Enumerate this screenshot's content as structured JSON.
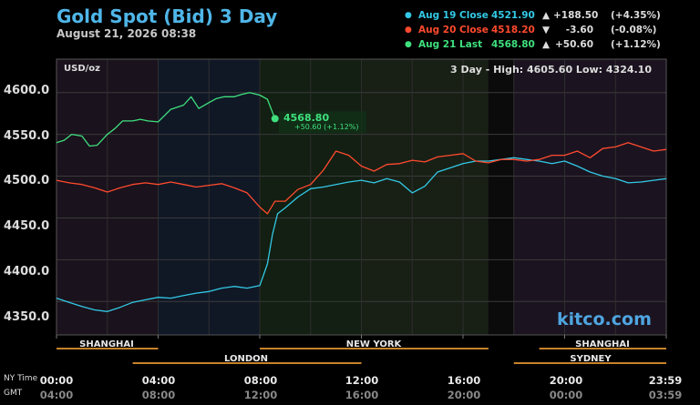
{
  "title": "Gold Spot (Bid) 3 Day",
  "subtitle": "August 21, 2026 08:38",
  "legend": [
    {
      "label": "Aug 19 Close",
      "value": "4521.90",
      "arrow": "▲",
      "change": "+188.50",
      "pct": "(+4.35%)",
      "color": "#33c9e6"
    },
    {
      "label": "Aug 20 Close",
      "value": "4518.20",
      "arrow": "▼",
      "change": "-3.60",
      "pct": "(-0.08%)",
      "color": "#ff4a2e"
    },
    {
      "label": "Aug 21 Last",
      "value": "4568.80",
      "arrow": "▲",
      "change": "+50.60",
      "pct": "(+1.12%)",
      "color": "#3fe07e"
    }
  ],
  "unit": "USD/oz",
  "range_text": "3 Day - High: 4605.60  Low: 4324.10",
  "last_label": "4568.80",
  "last_sub": "+50.60 (+1.12%)",
  "watermark": "kitco.com",
  "tz_ny": "NY Time",
  "tz_gmt": "GMT",
  "sessions_top": [
    "SHANGHAI",
    "NEW YORK",
    "SHANGHAI"
  ],
  "sessions_bottom": [
    "LONDON",
    "SYDNEY"
  ],
  "chart_data": {
    "type": "line",
    "title": "Gold Spot (Bid) 3 Day",
    "ylabel": "USD/oz",
    "ylim": [
      4310,
      4640
    ],
    "y_ticks": [
      "4350.0",
      "4400.0",
      "4450.0",
      "4500.0",
      "4550.0",
      "4600.0"
    ],
    "y_tick_values": [
      4350,
      4400,
      4450,
      4500,
      4550,
      4600
    ],
    "x_ticks_ny": [
      "00:00",
      "04:00",
      "08:00",
      "12:00",
      "16:00",
      "20:00",
      "23:59"
    ],
    "x_ticks_gmt": [
      "04:00",
      "08:00",
      "12:00",
      "16:00",
      "20:00",
      "00:00",
      "03:59"
    ],
    "xlim_hours": [
      0,
      24
    ],
    "series": [
      {
        "name": "Aug 19 Close",
        "color": "#33c9e6",
        "x": [
          0,
          0.5,
          1,
          1.5,
          2,
          2.5,
          3,
          3.5,
          4,
          4.5,
          5,
          5.5,
          6,
          6.5,
          7,
          7.5,
          8,
          8.3,
          8.5,
          8.7,
          9,
          9.5,
          10,
          10.5,
          11,
          11.5,
          12,
          12.5,
          13,
          13.5,
          14,
          14.5,
          15,
          15.5,
          16,
          16.5,
          17,
          17.5,
          18,
          18.5,
          19,
          19.5,
          20,
          20.5,
          21,
          21.5,
          22,
          22.5,
          23,
          23.5,
          24
        ],
        "y": [
          4354,
          4349,
          4344,
          4340,
          4338,
          4343,
          4349,
          4352,
          4355,
          4354,
          4357,
          4360,
          4362,
          4366,
          4368,
          4366,
          4369,
          4395,
          4430,
          4455,
          4462,
          4475,
          4485,
          4487,
          4490,
          4493,
          4495,
          4492,
          4497,
          4493,
          4480,
          4488,
          4505,
          4510,
          4515,
          4518,
          4518,
          4520,
          4522,
          4520,
          4518,
          4515,
          4518,
          4512,
          4505,
          4500,
          4497,
          4492,
          4493,
          4495,
          4497
        ]
      },
      {
        "name": "Aug 20 Close",
        "color": "#ff4a2e",
        "x": [
          0,
          0.5,
          1,
          1.5,
          2,
          2.5,
          3,
          3.5,
          4,
          4.5,
          5,
          5.5,
          6,
          6.5,
          7,
          7.5,
          8,
          8.3,
          8.6,
          9,
          9.5,
          10,
          10.5,
          11,
          11.5,
          12,
          12.5,
          13,
          13.5,
          14,
          14.5,
          15,
          15.5,
          16,
          16.5,
          17,
          17.5,
          18,
          18.5,
          19,
          19.5,
          20,
          20.5,
          21,
          21.5,
          22,
          22.5,
          23,
          23.5,
          24
        ],
        "y": [
          4495,
          4492,
          4490,
          4486,
          4481,
          4486,
          4490,
          4492,
          4490,
          4493,
          4490,
          4487,
          4489,
          4491,
          4486,
          4480,
          4463,
          4455,
          4470,
          4470,
          4484,
          4490,
          4507,
          4530,
          4525,
          4512,
          4506,
          4514,
          4515,
          4519,
          4517,
          4523,
          4525,
          4527,
          4518,
          4516,
          4520,
          4520,
          4518,
          4520,
          4525,
          4525,
          4530,
          4522,
          4533,
          4535,
          4540,
          4535,
          4530,
          4532
        ]
      },
      {
        "name": "Aug 21 Last",
        "color": "#3fe07e",
        "x": [
          0,
          0.3,
          0.6,
          1,
          1.3,
          1.6,
          2,
          2.3,
          2.6,
          3,
          3.3,
          3.6,
          4,
          4.5,
          5,
          5.3,
          5.6,
          6,
          6.3,
          6.6,
          7,
          7.3,
          7.6,
          8,
          8.3,
          8.6
        ],
        "y": [
          4540,
          4543,
          4550,
          4548,
          4536,
          4537,
          4550,
          4557,
          4566,
          4566,
          4568,
          4566,
          4565,
          4580,
          4585,
          4595,
          4581,
          4588,
          4593,
          4595,
          4595,
          4598,
          4600,
          4597,
          4592,
          4568.8
        ]
      }
    ]
  }
}
